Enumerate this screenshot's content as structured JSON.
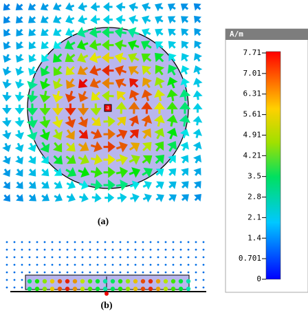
{
  "panel_a": {
    "label": "(a)",
    "marker": "a"
  },
  "panel_b": {
    "label": "(b)"
  },
  "colorbar": {
    "unit": "A/m",
    "ticks": [
      7.71,
      7.01,
      6.31,
      5.61,
      4.91,
      4.21,
      3.5,
      2.8,
      2.1,
      1.4,
      0.701,
      0
    ]
  }
}
